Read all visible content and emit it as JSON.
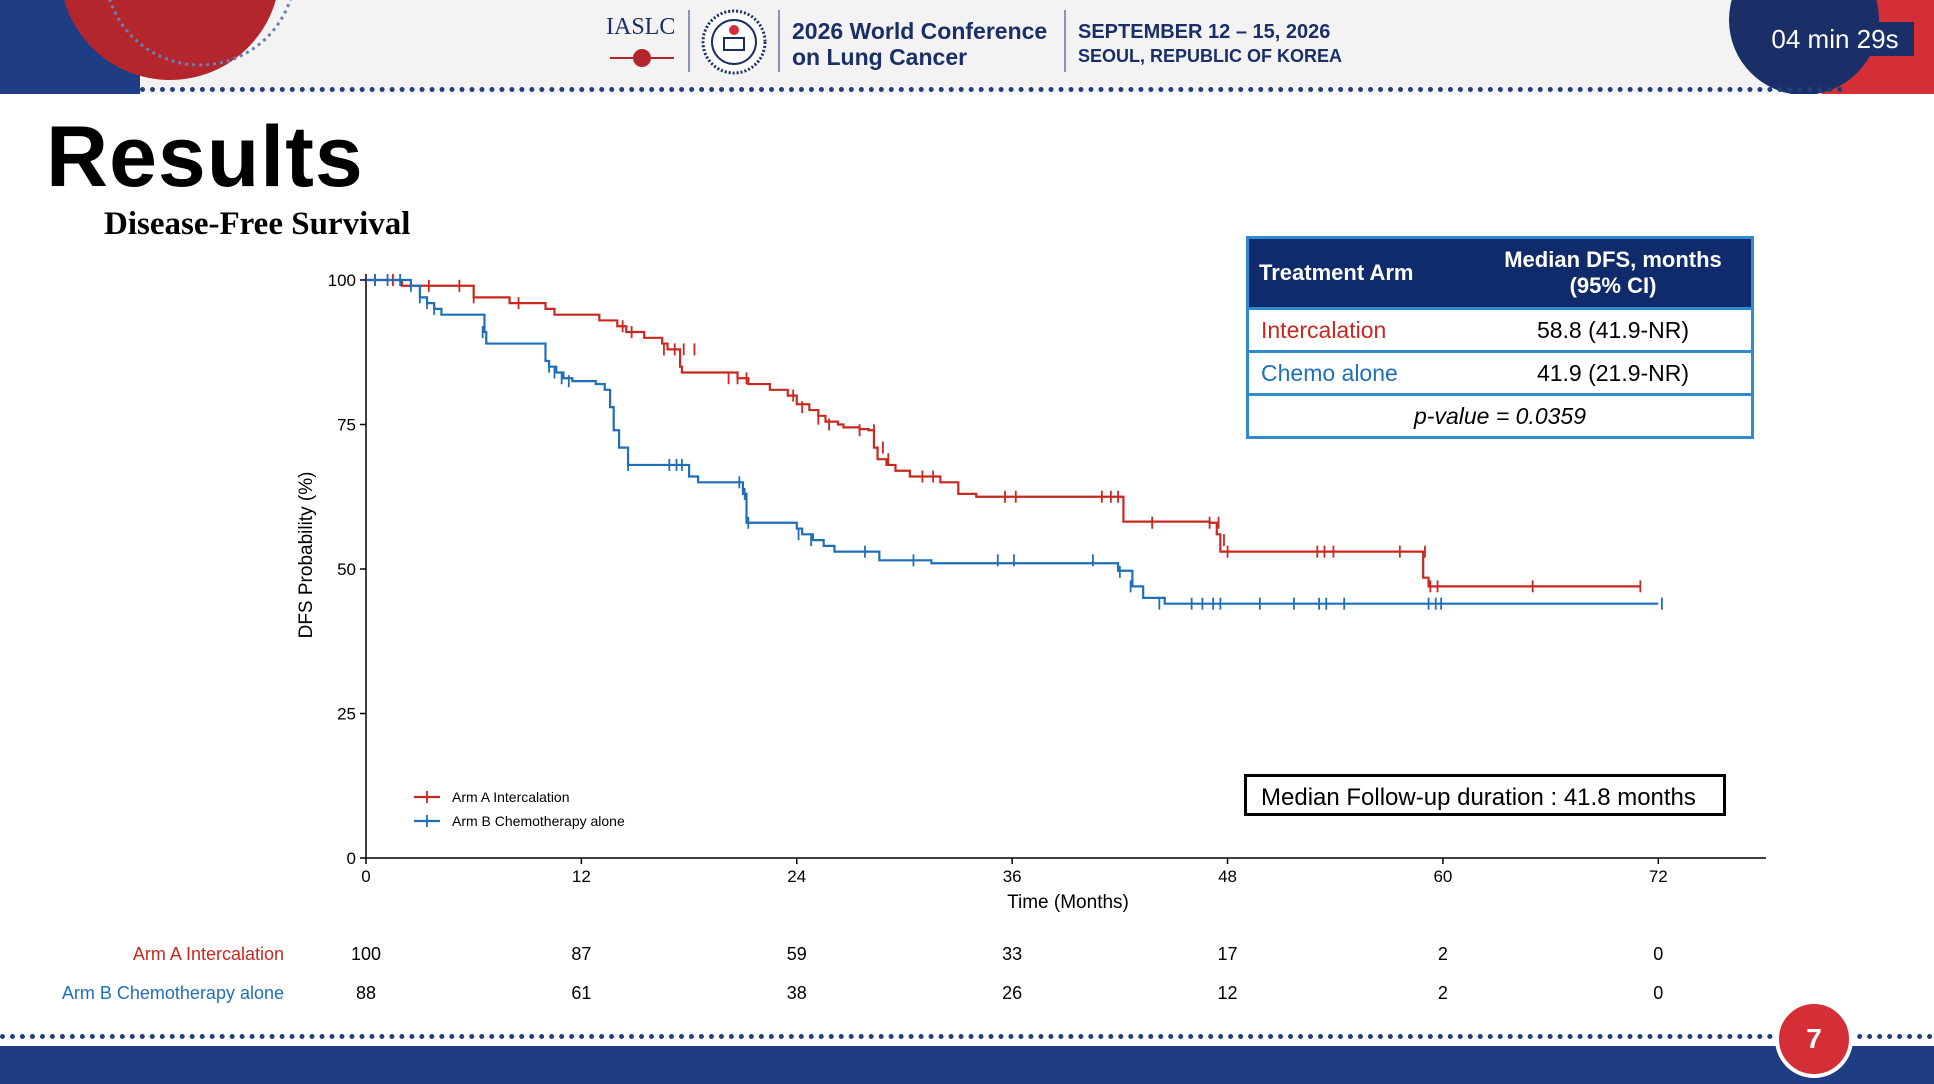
{
  "header": {
    "org": "IASLC",
    "conference_line1": "2026 World Conference",
    "conference_line2": "on Lung Cancer",
    "date_line1": "SEPTEMBER 12 – 15, 2026",
    "date_line2": "SEOUL, REPUBLIC OF KOREA",
    "timer": "04 min 29s",
    "colors": {
      "navy": "#1a2f68",
      "red": "#d42f36"
    }
  },
  "slide": {
    "title": "Results",
    "page_number": "7"
  },
  "median_table": {
    "headers": [
      "Treatment Arm",
      "Median DFS, months (95% CI)"
    ],
    "rows": [
      {
        "arm": "Intercalation",
        "value": "58.8 (41.9-NR)"
      },
      {
        "arm": "Chemo alone",
        "value": "41.9 (21.9-NR)"
      }
    ],
    "pvalue": "p-value = 0.0359"
  },
  "followup": "Median Follow-up duration : 41.8 months",
  "risk_table": {
    "labels": [
      "Arm A Intercalation",
      "Arm B Chemotherapy alone"
    ],
    "values": [
      [
        "100",
        "87",
        "59",
        "33",
        "17",
        "2",
        "0"
      ],
      [
        "88",
        "61",
        "38",
        "26",
        "12",
        "2",
        "0"
      ]
    ]
  },
  "chart_data": {
    "type": "line",
    "title": "Disease-Free Survival",
    "xlabel": "Time (Months)",
    "ylabel": "DFS Probability (%)",
    "xlim": [
      0,
      78
    ],
    "ylim": [
      0,
      100
    ],
    "xticks": [
      0,
      12,
      24,
      36,
      48,
      60,
      72
    ],
    "yticks": [
      0,
      25,
      50,
      75,
      100
    ],
    "legend": "bottom-left",
    "grid": false,
    "series": [
      {
        "name": "Arm A Intercalation",
        "color": "#c8281f",
        "steps": [
          [
            0,
            100
          ],
          [
            2,
            99
          ],
          [
            6,
            97
          ],
          [
            8,
            96
          ],
          [
            10,
            95
          ],
          [
            10.5,
            94
          ],
          [
            12,
            94
          ],
          [
            13,
            93
          ],
          [
            14,
            92
          ],
          [
            14.5,
            91
          ],
          [
            15.5,
            90
          ],
          [
            16.5,
            89
          ],
          [
            16.8,
            88
          ],
          [
            17.5,
            85
          ],
          [
            17.6,
            84
          ],
          [
            20,
            84
          ],
          [
            20.7,
            83
          ],
          [
            21.3,
            82
          ],
          [
            22.5,
            81
          ],
          [
            23.5,
            80
          ],
          [
            24,
            78.5
          ],
          [
            24.7,
            77.5
          ],
          [
            25.2,
            76.5
          ],
          [
            25.6,
            75.5
          ],
          [
            26.3,
            75
          ],
          [
            26.6,
            74.5
          ],
          [
            27.5,
            74.2
          ],
          [
            28,
            74
          ],
          [
            28.3,
            71
          ],
          [
            28.5,
            69
          ],
          [
            29,
            68
          ],
          [
            29.5,
            67
          ],
          [
            30.3,
            66
          ],
          [
            32,
            65
          ],
          [
            33,
            63
          ],
          [
            34,
            62.5
          ],
          [
            41,
            62.5
          ],
          [
            42.2,
            58.2
          ],
          [
            47,
            58
          ],
          [
            47.4,
            56
          ],
          [
            47.6,
            53
          ],
          [
            58.5,
            53
          ],
          [
            58.9,
            48.5
          ],
          [
            59.2,
            47
          ],
          [
            71,
            47
          ]
        ],
        "censors": [
          [
            0.5,
            100
          ],
          [
            1.5,
            100
          ],
          [
            3.5,
            99
          ],
          [
            5.2,
            99
          ],
          [
            6,
            97
          ],
          [
            8.5,
            96
          ],
          [
            14.3,
            92
          ],
          [
            14.8,
            91
          ],
          [
            16.6,
            88
          ],
          [
            17.2,
            88
          ],
          [
            17.7,
            88
          ],
          [
            18.3,
            88
          ],
          [
            20.2,
            83
          ],
          [
            20.7,
            83
          ],
          [
            21.2,
            83
          ],
          [
            23.8,
            80
          ],
          [
            24.3,
            78
          ],
          [
            25.2,
            76
          ],
          [
            25.8,
            75
          ],
          [
            27.5,
            74
          ],
          [
            28.3,
            74
          ],
          [
            28.8,
            71
          ],
          [
            29.1,
            69
          ],
          [
            31,
            66
          ],
          [
            31.6,
            66
          ],
          [
            35.6,
            62.5
          ],
          [
            36.2,
            62.5
          ],
          [
            41,
            62.5
          ],
          [
            41.5,
            62.5
          ],
          [
            41.9,
            62.5
          ],
          [
            43.8,
            58
          ],
          [
            47,
            58
          ],
          [
            47.5,
            58
          ],
          [
            47.8,
            55
          ],
          [
            48,
            53
          ],
          [
            53,
            53
          ],
          [
            53.4,
            53
          ],
          [
            53.9,
            53
          ],
          [
            57.6,
            53
          ],
          [
            59,
            53
          ],
          [
            59.3,
            47
          ],
          [
            59.7,
            47
          ],
          [
            65,
            47
          ],
          [
            71,
            47
          ]
        ]
      },
      {
        "name": "Arm B Chemotherapy alone",
        "color": "#1f6fb8",
        "steps": [
          [
            0,
            100
          ],
          [
            2.5,
            99
          ],
          [
            3,
            97
          ],
          [
            3.4,
            96
          ],
          [
            3.8,
            95
          ],
          [
            4.2,
            94
          ],
          [
            6.5,
            94
          ],
          [
            6.6,
            91
          ],
          [
            6.7,
            89
          ],
          [
            9.5,
            89
          ],
          [
            10,
            86
          ],
          [
            10.2,
            85
          ],
          [
            10.6,
            84
          ],
          [
            11,
            83
          ],
          [
            11.5,
            82.5
          ],
          [
            12.8,
            82
          ],
          [
            13.3,
            81
          ],
          [
            13.6,
            78
          ],
          [
            13.8,
            74
          ],
          [
            14.1,
            71
          ],
          [
            14.6,
            68
          ],
          [
            17.5,
            68
          ],
          [
            18,
            66
          ],
          [
            18.5,
            65
          ],
          [
            20.8,
            65
          ],
          [
            21,
            63
          ],
          [
            21.2,
            58
          ],
          [
            24,
            57
          ],
          [
            24.3,
            56
          ],
          [
            24.9,
            55
          ],
          [
            25.5,
            54
          ],
          [
            26.1,
            53
          ],
          [
            28.3,
            53
          ],
          [
            28.6,
            51.5
          ],
          [
            31.1,
            51.5
          ],
          [
            31.5,
            51
          ],
          [
            41,
            51
          ],
          [
            41.9,
            49.7
          ],
          [
            42.7,
            47
          ],
          [
            43.3,
            45
          ],
          [
            44.5,
            44
          ],
          [
            72,
            44
          ]
        ],
        "censors": [
          [
            0.5,
            100
          ],
          [
            1.2,
            100
          ],
          [
            1.9,
            100
          ],
          [
            2.5,
            99
          ],
          [
            3,
            97
          ],
          [
            3.4,
            96
          ],
          [
            3.8,
            95
          ],
          [
            6.5,
            91
          ],
          [
            10.2,
            85
          ],
          [
            10.5,
            84
          ],
          [
            10.9,
            83
          ],
          [
            11.3,
            82.5
          ],
          [
            14.6,
            68
          ],
          [
            16.9,
            68
          ],
          [
            17.3,
            68
          ],
          [
            17.6,
            68
          ],
          [
            20.8,
            65
          ],
          [
            21.1,
            63
          ],
          [
            21.3,
            58
          ],
          [
            24.1,
            56
          ],
          [
            24.8,
            55
          ],
          [
            27.8,
            53
          ],
          [
            30.5,
            51.5
          ],
          [
            35.2,
            51.5
          ],
          [
            36.1,
            51.5
          ],
          [
            40.5,
            51.5
          ],
          [
            42,
            49.5
          ],
          [
            42.6,
            47
          ],
          [
            44.2,
            44
          ],
          [
            46,
            44
          ],
          [
            46.6,
            44
          ],
          [
            47.2,
            44
          ],
          [
            47.6,
            44
          ],
          [
            49.8,
            44
          ],
          [
            51.7,
            44
          ],
          [
            53.1,
            44
          ],
          [
            53.5,
            44
          ],
          [
            54.5,
            44
          ],
          [
            59.2,
            44
          ],
          [
            59.6,
            44
          ],
          [
            59.9,
            44
          ],
          [
            72.2,
            44
          ]
        ]
      }
    ]
  }
}
